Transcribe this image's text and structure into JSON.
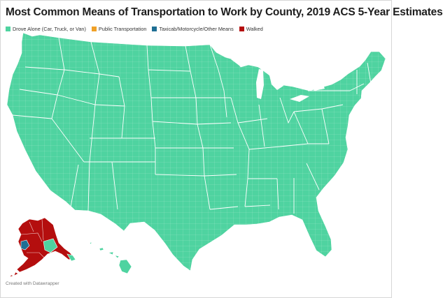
{
  "title": "Most Common Means of Transportation to Work by County, 2019 ACS 5-Year Estimates",
  "legend": [
    {
      "label": "Drove Alone (Car, Truck, or Van)",
      "color": "#4fd3a0"
    },
    {
      "label": "Public Transportation",
      "color": "#f0a128"
    },
    {
      "label": "Taxicab/Motorcycle/Other Means",
      "color": "#1f6f94"
    },
    {
      "label": "Walked",
      "color": "#b40e0e"
    }
  ],
  "map": {
    "regions": [
      {
        "name": "Contiguous United States",
        "category": "Drove Alone (Car, Truck, or Van)"
      },
      {
        "name": "Alaska",
        "category": "Walked"
      },
      {
        "name": "Hawaii",
        "category": "Drove Alone (Car, Truck, or Van)"
      }
    ],
    "colors": {
      "boundary": "#ffffff"
    }
  },
  "credit": "Created with Datawrapper"
}
